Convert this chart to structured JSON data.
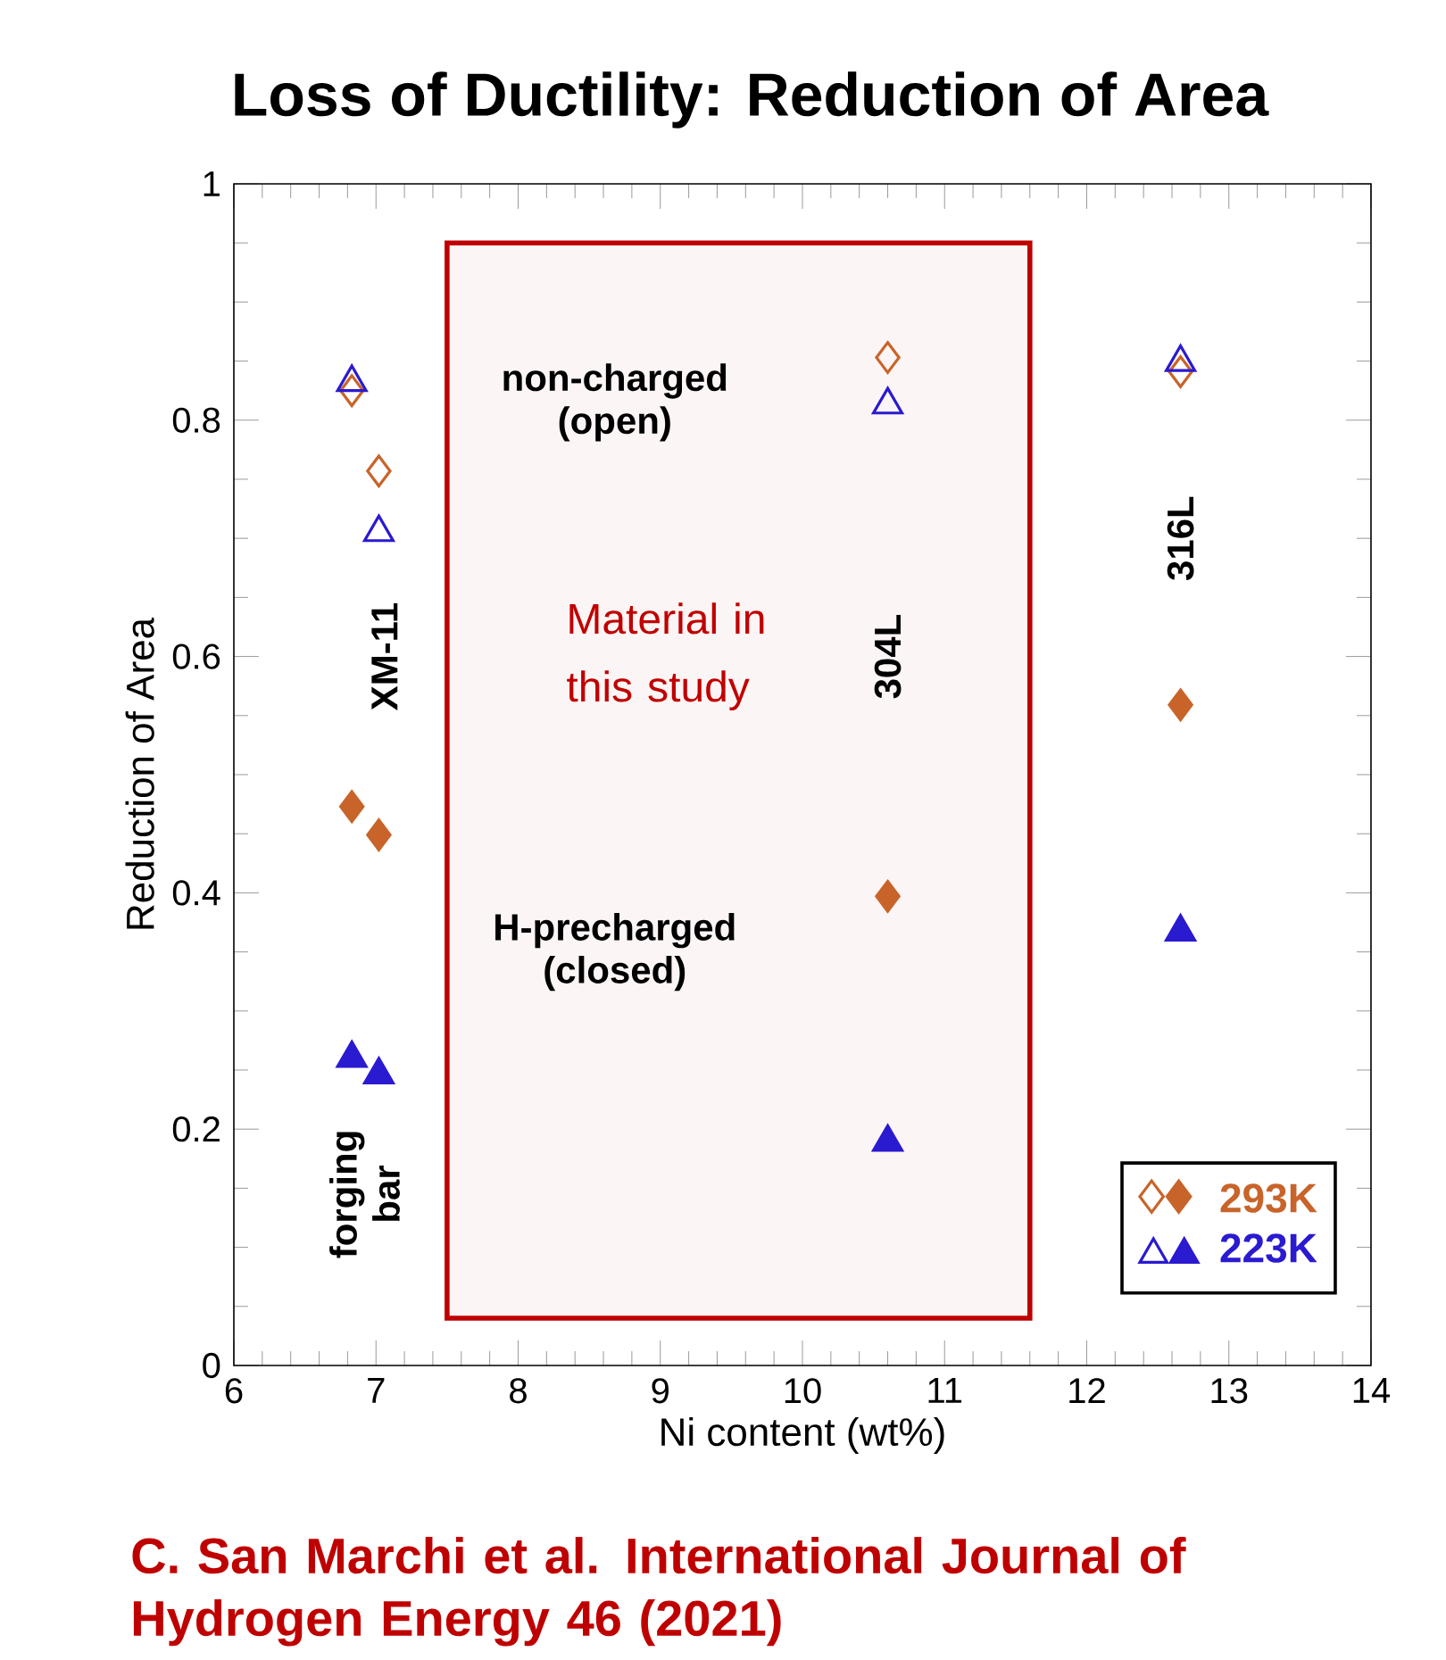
{
  "chart_data": {
    "type": "scatter",
    "title": "Loss of Ductility:  Reduction of Area",
    "xlabel": "Ni content (wt%)",
    "ylabel": "Reduction of Area",
    "xlim": [
      6,
      14
    ],
    "xticks": [
      6,
      7,
      8,
      9,
      10,
      11,
      12,
      13,
      14
    ],
    "ylim": [
      0,
      1
    ],
    "yticks": [
      0,
      0.2,
      0.4,
      0.6,
      0.8,
      1
    ],
    "series": [
      {
        "color": "#c8642a",
        "marker": "diamond",
        "x": [
          6.83,
          7.02,
          10.6,
          12.66
        ],
        "values": [
          0.825,
          0.757,
          0.853,
          0.841
        ]
      },
      {
        "name": "293K",
        "color": "#c8642a",
        "marker": "diamond",
        "x": [
          6.83,
          7.02,
          10.6,
          12.66
        ],
        "values": [
          0.473,
          0.449,
          0.397,
          0.559
        ]
      },
      {
        "color": "#2a1ad0",
        "marker": "triangle",
        "x": [
          6.83,
          7.02,
          10.6,
          12.66
        ],
        "values": [
          0.832,
          0.705,
          0.813,
          0.849
        ]
      },
      {
        "name": "223K",
        "color": "#2a1ad0",
        "marker": "triangle",
        "x": [
          6.83,
          7.02,
          10.6,
          12.66
        ],
        "values": [
          0.26,
          0.246,
          0.189,
          0.367
        ]
      }
    ],
    "bands": [
      {
        "axis": "x",
        "from": 7.5,
        "to": 11.6,
        "label": "Material in this study",
        "color": "#c00000"
      }
    ],
    "annotations": [
      "non-charged (open)",
      "H-precharged (closed)",
      "XM-11",
      "forging bar",
      "304L",
      "316L",
      "C. San Marchi et al. International Journal of Hydrogen Energy 46 (2021)"
    ],
    "legend": "bottom right"
  }
}
